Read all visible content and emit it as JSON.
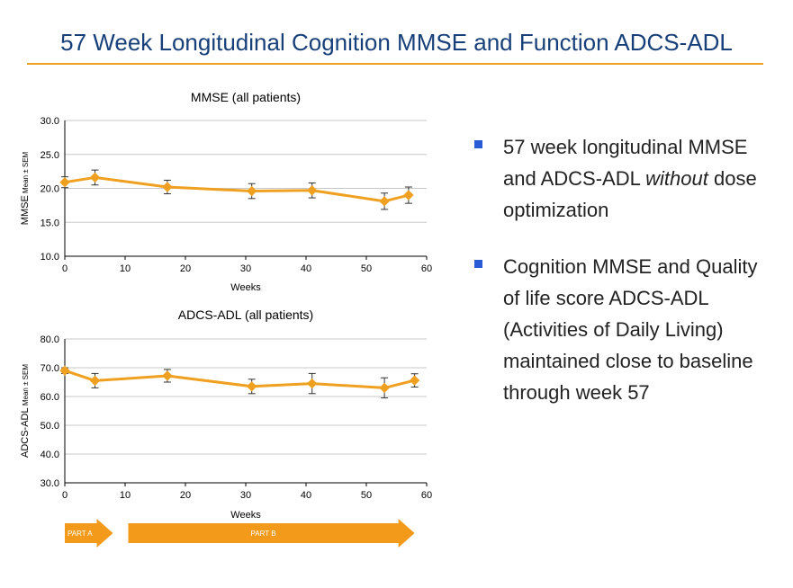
{
  "slide": {
    "title": "57 Week Longitudinal Cognition MMSE and Function ADCS-ADL",
    "bullets": [
      {
        "parts": [
          {
            "text": "57 week longitudinal MMSE and ADCS-ADL ",
            "italic": false
          },
          {
            "text": "without",
            "italic": true
          },
          {
            "text": " dose optimization",
            "italic": false
          }
        ]
      },
      {
        "parts": [
          {
            "text": "Cognition MMSE and Quality of life score ADCS-ADL (Activities of Daily Living) maintained close to baseline through week 57",
            "italic": false
          }
        ]
      }
    ]
  },
  "colors": {
    "title": "#17407a",
    "rule": "#f0a020",
    "series": "#f0a020",
    "errorbar": "#333333",
    "bullet": "#2a5bd7",
    "phase": "#f39a1a"
  },
  "chart_data": [
    {
      "type": "line",
      "title": "MMSE (all patients)",
      "xlabel": "Weeks",
      "ylabel_main": "MMSE",
      "ylabel_sub": " Mean ± SEM",
      "xlim": [
        0,
        60
      ],
      "ylim": [
        10,
        30
      ],
      "xticks": [
        0,
        10,
        20,
        30,
        40,
        50,
        60
      ],
      "yticks": [
        10.0,
        15.0,
        20.0,
        25.0,
        30.0
      ],
      "ytick_labels": [
        "10.0",
        "15.0",
        "20.0",
        "25.0",
        "30.0"
      ],
      "grid": true,
      "series": [
        {
          "name": "MMSE",
          "x": [
            0,
            5,
            17,
            31,
            41,
            53,
            57
          ],
          "y": [
            20.9,
            21.6,
            20.2,
            19.6,
            19.7,
            18.1,
            19.0
          ],
          "err": [
            0.8,
            1.1,
            1.0,
            1.1,
            1.1,
            1.2,
            1.2
          ]
        }
      ]
    },
    {
      "type": "line",
      "title": "ADCS-ADL (all patients)",
      "xlabel": "Weeks",
      "ylabel_main": "ADCS-ADL",
      "ylabel_sub": " Mean ± SEM",
      "xlim": [
        0,
        60
      ],
      "ylim": [
        30,
        80
      ],
      "xticks": [
        0,
        10,
        20,
        30,
        40,
        50,
        60
      ],
      "yticks": [
        30.0,
        40.0,
        50.0,
        60.0,
        70.0,
        80.0
      ],
      "ytick_labels": [
        "30.0",
        "40.0",
        "50.0",
        "60.0",
        "70.0",
        "80.0"
      ],
      "grid": true,
      "series": [
        {
          "name": "ADCS-ADL",
          "x": [
            0,
            5,
            17,
            31,
            41,
            53,
            58
          ],
          "y": [
            69.0,
            65.5,
            67.2,
            63.5,
            64.5,
            63.0,
            65.6
          ],
          "err": [
            1.0,
            2.5,
            2.2,
            2.5,
            3.5,
            3.5,
            2.3
          ]
        }
      ]
    }
  ],
  "phases": [
    {
      "label": "PART A",
      "start_week": 0,
      "end_week": 5
    },
    {
      "label": "PART B",
      "start_week": 5,
      "end_week": 58
    }
  ]
}
